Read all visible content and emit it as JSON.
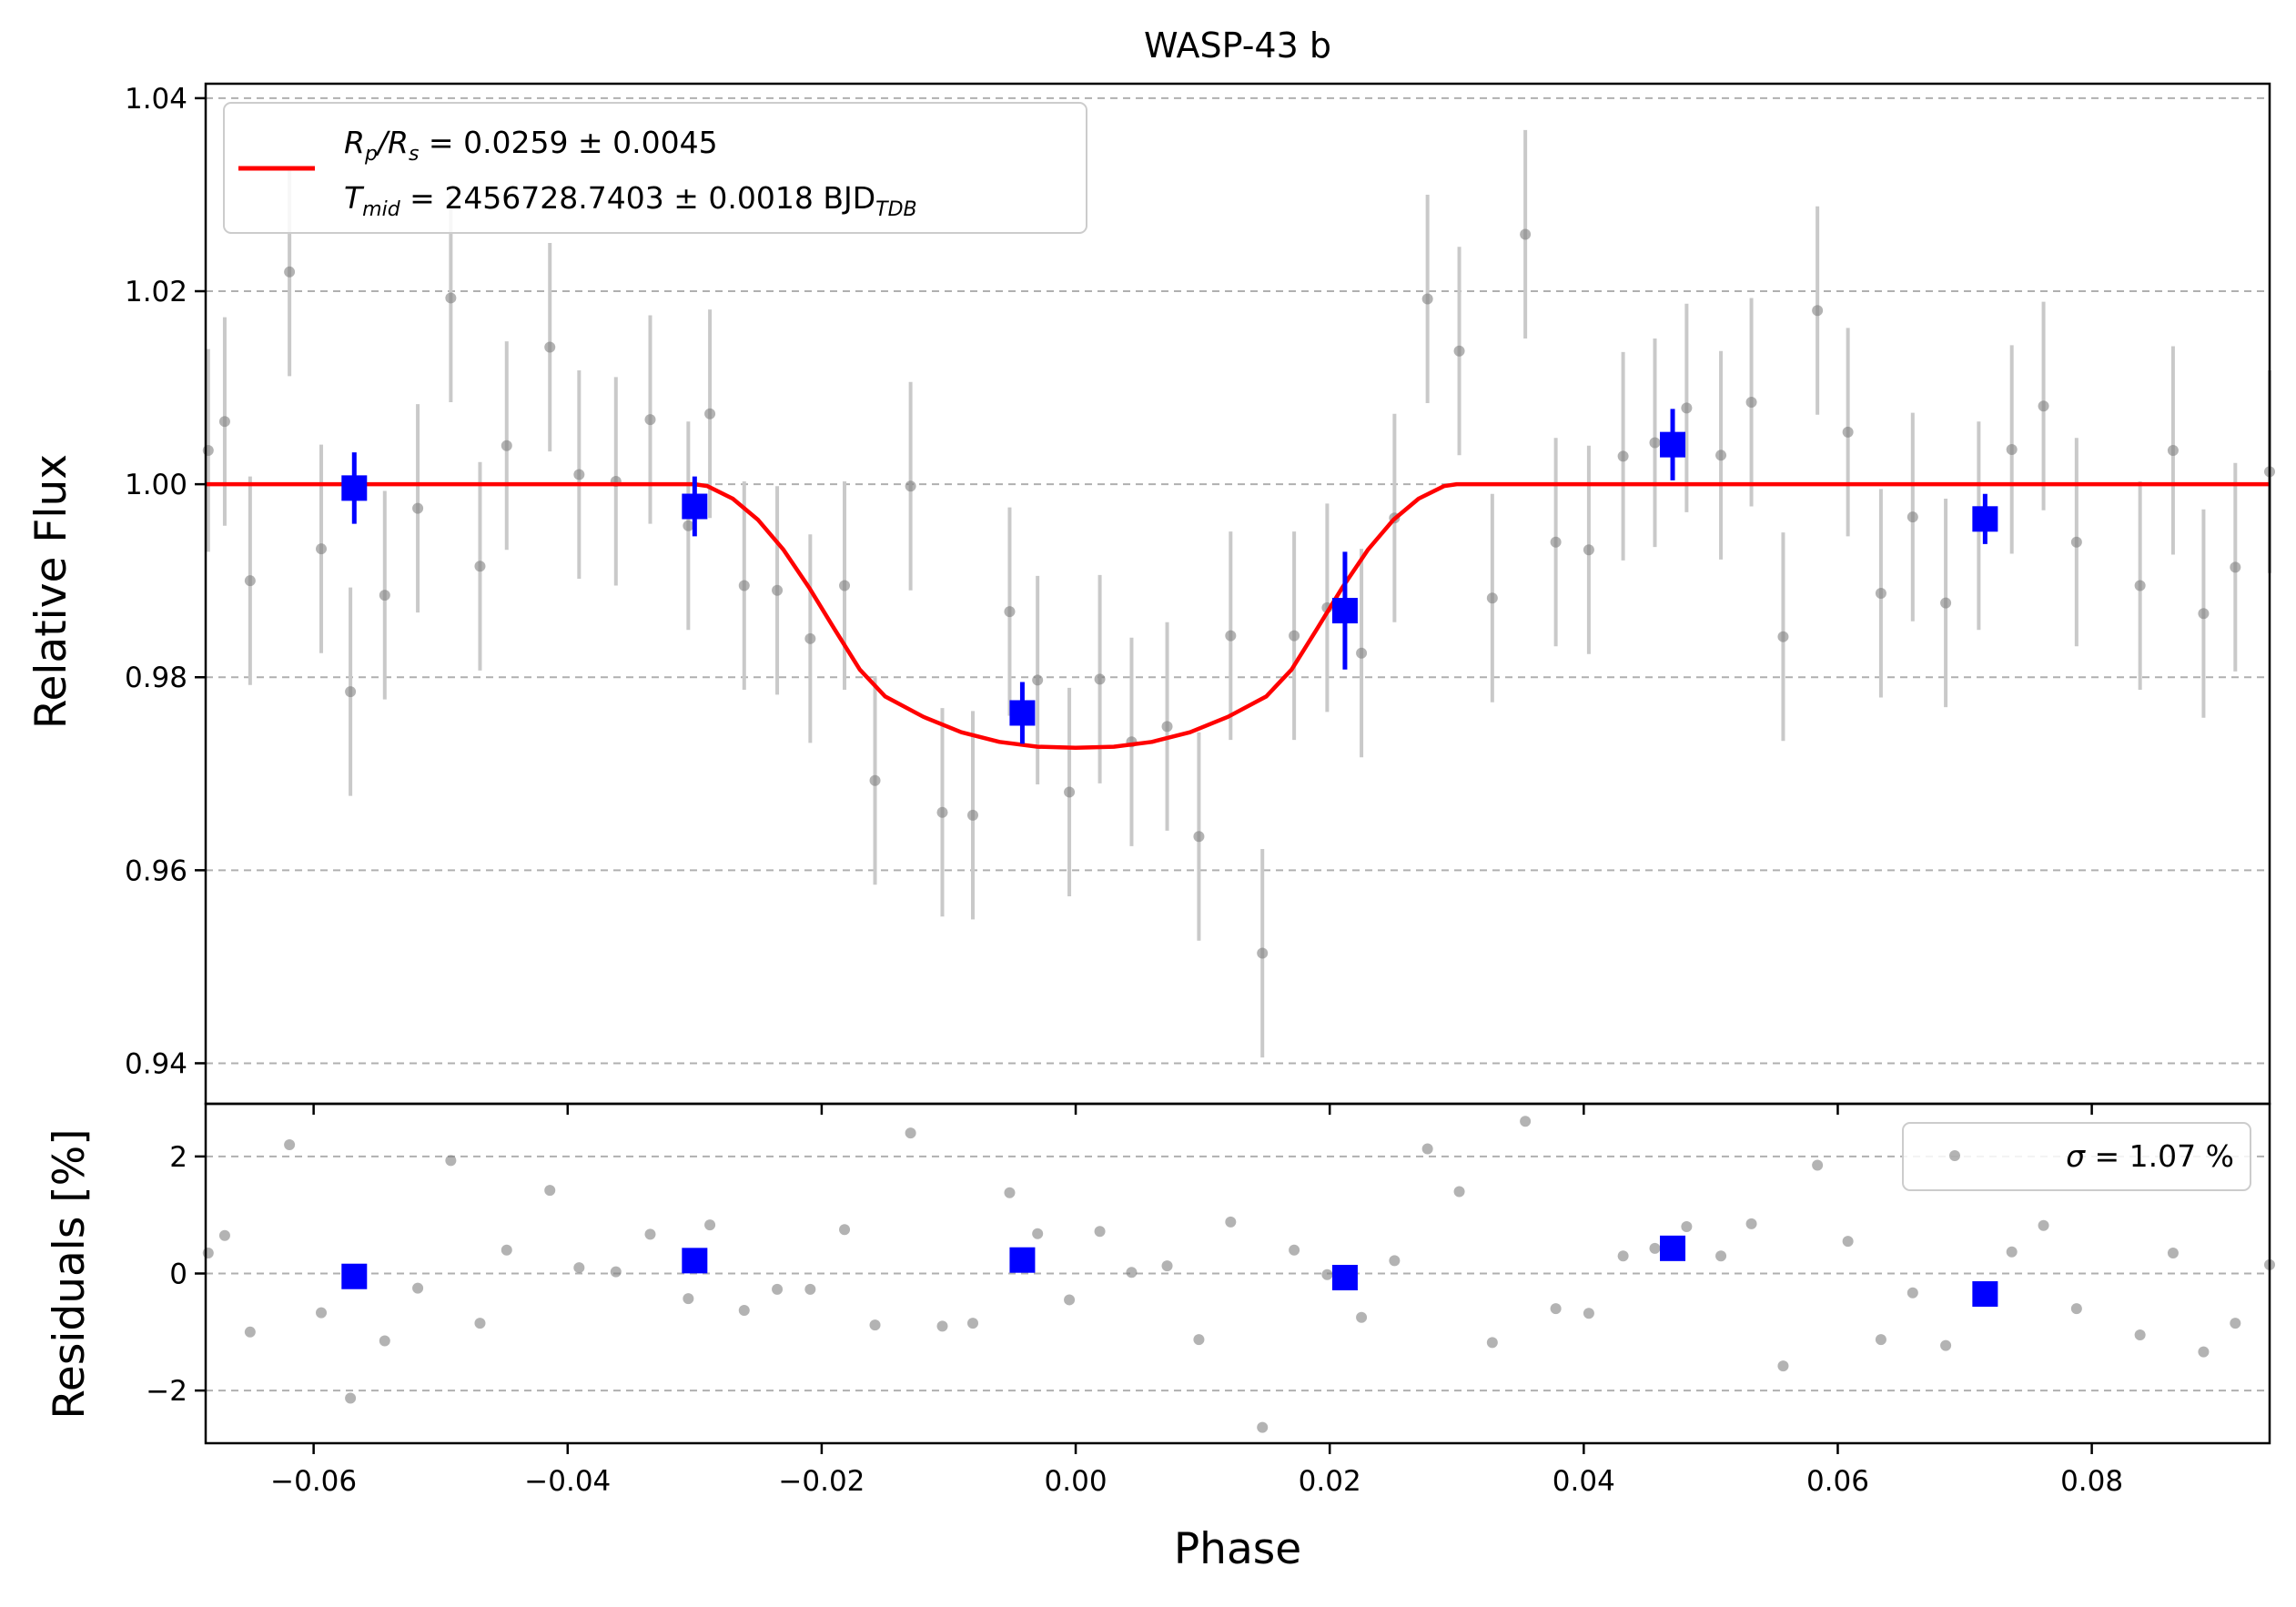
{
  "chart_data": [
    {
      "type": "scatter",
      "title": "WASP-43 b",
      "xlabel": "",
      "ylabel": "Relative Flux",
      "xlim": [
        -0.0685,
        0.094
      ],
      "ylim": [
        0.9358,
        1.0415
      ],
      "grid": "horizontal dashed",
      "legend_position": "top-left",
      "xticks": [
        -0.06,
        -0.04,
        -0.02,
        0.0,
        0.02,
        0.04,
        0.06,
        0.08
      ],
      "yticks": [
        0.94,
        0.96,
        0.98,
        1.0,
        1.02,
        1.04
      ],
      "ytick_labels": [
        "0.94",
        "0.96",
        "0.98",
        "1.00",
        "1.02",
        "1.04"
      ],
      "legend": {
        "line1_prefix": "R",
        "line1_sub1": "p",
        "line1_mid": "/R",
        "line1_sub2": "s",
        "line1_suffix": " = 0.0259 ± 0.0045",
        "line2_prefix": "T",
        "line2_sub": "mid",
        "line2_mid": " = 2456728.7403 ± 0.0018 BJD",
        "line2_sub2": "TDB"
      },
      "series": [
        {
          "name": "",
          "style": "raw data",
          "color": "#808080",
          "x": [
            -0.0683,
            -0.067,
            -0.065,
            -0.0619,
            -0.0594,
            -0.0571,
            -0.0544,
            -0.0518,
            -0.0492,
            -0.0469,
            -0.0448,
            -0.0414,
            -0.0391,
            -0.0362,
            -0.0335,
            -0.0305,
            -0.0288,
            -0.0261,
            -0.0235,
            -0.0209,
            -0.0182,
            -0.0158,
            -0.013,
            -0.0105,
            -0.0081,
            -0.0052,
            -0.003,
            -0.0005,
            0.0019,
            0.0044,
            0.0072,
            0.0097,
            0.0122,
            0.0147,
            0.0172,
            0.0198,
            0.0225,
            0.0251,
            0.0277,
            0.0302,
            0.0328,
            0.0354,
            0.0378,
            0.0404,
            0.0431,
            0.0456,
            0.0481,
            0.0508,
            0.0532,
            0.0557,
            0.0584,
            0.0608,
            0.0634,
            0.0659,
            0.0685,
            0.0711,
            0.0737,
            0.0762,
            0.0788,
            0.0838,
            0.0864,
            0.0888,
            0.0913,
            0.094
          ],
          "values": [
            1.0035,
            1.0065,
            0.99,
            1.022,
            0.9933,
            0.9785,
            0.9885,
            0.9975,
            1.0193,
            0.9915,
            1.004,
            1.0142,
            1.001,
            1.0003,
            1.0067,
            0.9957,
            1.0073,
            0.9895,
            0.989,
            0.984,
            0.9895,
            0.9693,
            0.9998,
            0.966,
            0.9657,
            0.9868,
            0.9797,
            0.9681,
            0.9798,
            0.9733,
            0.9749,
            0.9635,
            0.9843,
            0.9514,
            0.9843,
            0.9872,
            0.9825,
            0.9965,
            1.0192,
            1.0138,
            0.9882,
            1.0259,
            0.994,
            0.9932,
            1.0029,
            1.0043,
            1.0079,
            1.003,
            1.0085,
            0.9842,
            1.018,
            1.0054,
            0.9887,
            0.9966,
            0.9877,
            0.9957,
            1.0036,
            1.0081,
            0.994,
            0.9895,
            1.0035,
            0.9866,
            0.9914,
            1.0013
          ],
          "errors": [
            0.0105,
            0.0108,
            0.0108,
            0.0108,
            0.0108,
            0.0108,
            0.0108,
            0.0108,
            0.0108,
            0.0108,
            0.0108,
            0.0108,
            0.0108,
            0.0108,
            0.0108,
            0.0108,
            0.0108,
            0.0108,
            0.0108,
            0.0108,
            0.0108,
            0.0108,
            0.0108,
            0.0108,
            0.0108,
            0.0108,
            0.0108,
            0.0108,
            0.0108,
            0.0108,
            0.0108,
            0.0108,
            0.0108,
            0.0108,
            0.0108,
            0.0108,
            0.0108,
            0.0108,
            0.0108,
            0.0108,
            0.0108,
            0.0108,
            0.0108,
            0.0108,
            0.0108,
            0.0108,
            0.0108,
            0.0108,
            0.0108,
            0.0108,
            0.0108,
            0.0108,
            0.0108,
            0.0108,
            0.0108,
            0.0108,
            0.0108,
            0.0108,
            0.0108,
            0.0108,
            0.0108,
            0.0108,
            0.0108,
            0.0105
          ]
        },
        {
          "name": "",
          "style": "binned data",
          "color": "#0000ff",
          "x": [
            -0.0568,
            -0.03,
            -0.0042,
            0.0212,
            0.047,
            0.0716
          ],
          "values": [
            0.9996,
            0.9977,
            0.9763,
            0.9869,
            1.0041,
            0.9964
          ],
          "errors": [
            0.0037,
            0.0031,
            0.0032,
            0.0061,
            0.0037,
            0.0026
          ]
        },
        {
          "name": "",
          "style": "model",
          "color": "#ff0000",
          "x": [
            -0.0685,
            -0.03,
            -0.029,
            -0.027,
            -0.025,
            -0.023,
            -0.021,
            -0.019,
            -0.017,
            -0.015,
            -0.012,
            -0.009,
            -0.006,
            -0.003,
            0.0,
            0.003,
            0.006,
            0.009,
            0.012,
            0.015,
            0.017,
            0.019,
            0.021,
            0.023,
            0.025,
            0.027,
            0.029,
            0.03,
            0.094
          ],
          "values": [
            1.0,
            1.0,
            0.9998,
            0.9985,
            0.9963,
            0.9932,
            0.9893,
            0.985,
            0.9808,
            0.978,
            0.9759,
            0.9743,
            0.9733,
            0.9728,
            0.9727,
            0.9728,
            0.9733,
            0.9743,
            0.9759,
            0.978,
            0.9808,
            0.985,
            0.9893,
            0.9932,
            0.9963,
            0.9985,
            0.9998,
            1.0,
            1.0
          ]
        }
      ]
    },
    {
      "type": "scatter",
      "title": "",
      "xlabel": "Phase",
      "ylabel": "Residuals [%]",
      "xlim": [
        -0.0685,
        0.094
      ],
      "ylim": [
        -2.9,
        2.9
      ],
      "grid": "horizontal dashed",
      "legend_position": "top-right",
      "xticks": [
        -0.06,
        -0.04,
        -0.02,
        0.0,
        0.02,
        0.04,
        0.06,
        0.08
      ],
      "xtick_labels": [
        "−0.06",
        "−0.04",
        "−0.02",
        "0.00",
        "0.02",
        "0.04",
        "0.06",
        "0.08"
      ],
      "yticks": [
        -2,
        0,
        2
      ],
      "ytick_labels": [
        "−2",
        "0",
        "2"
      ],
      "legend": {
        "symbol": "σ",
        "text": " = 1.07 %"
      },
      "series": [
        {
          "name": "",
          "style": "raw residuals",
          "color": "#808080",
          "x": [
            -0.0683,
            -0.067,
            -0.065,
            -0.0619,
            -0.0594,
            -0.0571,
            -0.0544,
            -0.0518,
            -0.0492,
            -0.0469,
            -0.0448,
            -0.0414,
            -0.0391,
            -0.0362,
            -0.0335,
            -0.0305,
            -0.0288,
            -0.0261,
            -0.0235,
            -0.0209,
            -0.0182,
            -0.0158,
            -0.013,
            -0.0105,
            -0.0081,
            -0.0052,
            -0.003,
            -0.0005,
            0.0019,
            0.0044,
            0.0072,
            0.0097,
            0.0122,
            0.0147,
            0.0172,
            0.0198,
            0.0225,
            0.0251,
            0.0277,
            0.0302,
            0.0328,
            0.0354,
            0.0378,
            0.0404,
            0.0431,
            0.0456,
            0.0481,
            0.0508,
            0.0532,
            0.0557,
            0.0584,
            0.0608,
            0.0634,
            0.0659,
            0.0685,
            0.0711,
            0.0737,
            0.0762,
            0.0788,
            0.0838,
            0.0864,
            0.0888,
            0.0913,
            0.094
          ],
          "values": [
            0.35,
            0.65,
            -1.0,
            2.2,
            -0.67,
            -2.13,
            -1.15,
            -0.25,
            1.93,
            -0.85,
            0.4,
            1.42,
            0.1,
            0.03,
            0.67,
            -0.43,
            0.83,
            -0.63,
            -0.27,
            -0.27,
            0.75,
            -0.88,
            2.4,
            -0.9,
            -0.85,
            1.38,
            0.68,
            -0.45,
            0.72,
            0.02,
            0.13,
            -1.13,
            0.88,
            -2.63,
            0.4,
            -0.02,
            -0.75,
            0.22,
            2.13,
            1.4,
            -1.18,
            2.6,
            -0.6,
            -0.68,
            0.3,
            0.43,
            0.8,
            0.3,
            0.85,
            -1.58,
            1.85,
            0.55,
            -1.13,
            -0.33,
            -1.23,
            -0.43,
            0.37,
            0.82,
            -0.6,
            -1.05,
            0.35,
            -1.34,
            -0.85,
            0.15
          ]
        },
        {
          "name": "",
          "style": "binned residuals",
          "color": "#0000ff",
          "x": [
            -0.0568,
            -0.03,
            -0.0042,
            0.0212,
            0.047,
            0.0716
          ],
          "values": [
            -0.05,
            0.22,
            0.23,
            -0.07,
            0.43,
            -0.35
          ]
        }
      ]
    }
  ]
}
